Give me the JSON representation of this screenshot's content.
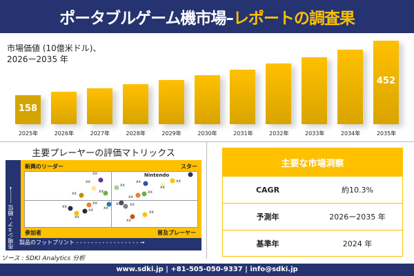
{
  "header": {
    "title_main": "ポータブルゲーム機市場–",
    "title_accent": "レポートの調査果"
  },
  "chart_data": {
    "type": "bar",
    "title": "市場価値 (10億米ドル)、",
    "subtitle": "2026ー2035 年",
    "categories": [
      "2025年",
      "2026年",
      "2027年",
      "2028年",
      "2029年",
      "2030年",
      "2031年",
      "2032年",
      "2033年",
      "2034年",
      "2035年"
    ],
    "values": [
      158,
      176,
      195,
      216,
      239,
      265,
      295,
      329,
      363,
      403,
      452
    ],
    "data_labels": {
      "first": "158",
      "last": "452"
    },
    "colors": {
      "bar": "#ffc000",
      "first_bar": "#d4a400"
    }
  },
  "matrix": {
    "title": "主要プレーヤーの評価マトリックス",
    "q_tl": "新興のリーダー",
    "q_tr": "スター",
    "q_bl": "参加者",
    "q_br": "普及プレーヤー",
    "y_axis": "市場シェア・順位 ------→",
    "x_axis": "製品のフットプリント - - - - - - - - - - - - - - - - - →",
    "highlight": "Nintendo",
    "players": [
      {
        "label": "xx",
        "color": "#7030a0"
      },
      {
        "label": "xx",
        "color": "#ffe699"
      },
      {
        "label": "xx",
        "color": "#bf9000"
      },
      {
        "label": "xx",
        "color": "#70ad47"
      },
      {
        "label": "xx",
        "color": "#a9d18e"
      },
      {
        "label": "xx",
        "color": "#2f5597"
      },
      {
        "label": "xx",
        "color": "#fff2cc"
      },
      {
        "label": "xx",
        "color": "#ffc000"
      },
      {
        "label": "",
        "color": "#203864"
      },
      {
        "label": "xx",
        "color": "#ed7d31"
      },
      {
        "label": "xx",
        "color": "#70ad47"
      },
      {
        "label": "xx",
        "color": "#ed7d31"
      },
      {
        "label": "xx",
        "color": "#2e75b6"
      },
      {
        "label": "xx",
        "color": "#222a50"
      },
      {
        "label": "xx",
        "color": "#222a35"
      },
      {
        "label": "xx",
        "color": "#ffc000"
      },
      {
        "label": "xx",
        "color": "#44546a"
      },
      {
        "label": "xx",
        "color": "#808080"
      },
      {
        "label": "xx",
        "color": "#c55a11"
      },
      {
        "label": "xx",
        "color": "#ffc000"
      }
    ]
  },
  "source": "ソース : SDKI Analytics 分析",
  "insights": {
    "title": "主要な市場洞察",
    "rows": [
      {
        "k": "CAGR",
        "v": "約10.3%"
      },
      {
        "k": "予測年",
        "v": "2026ー2035 年"
      },
      {
        "k": "基準年",
        "v": "2024 年"
      }
    ]
  },
  "footer": "www.sdki.jp | +81-505-050-9337 | info@sdki.jp"
}
